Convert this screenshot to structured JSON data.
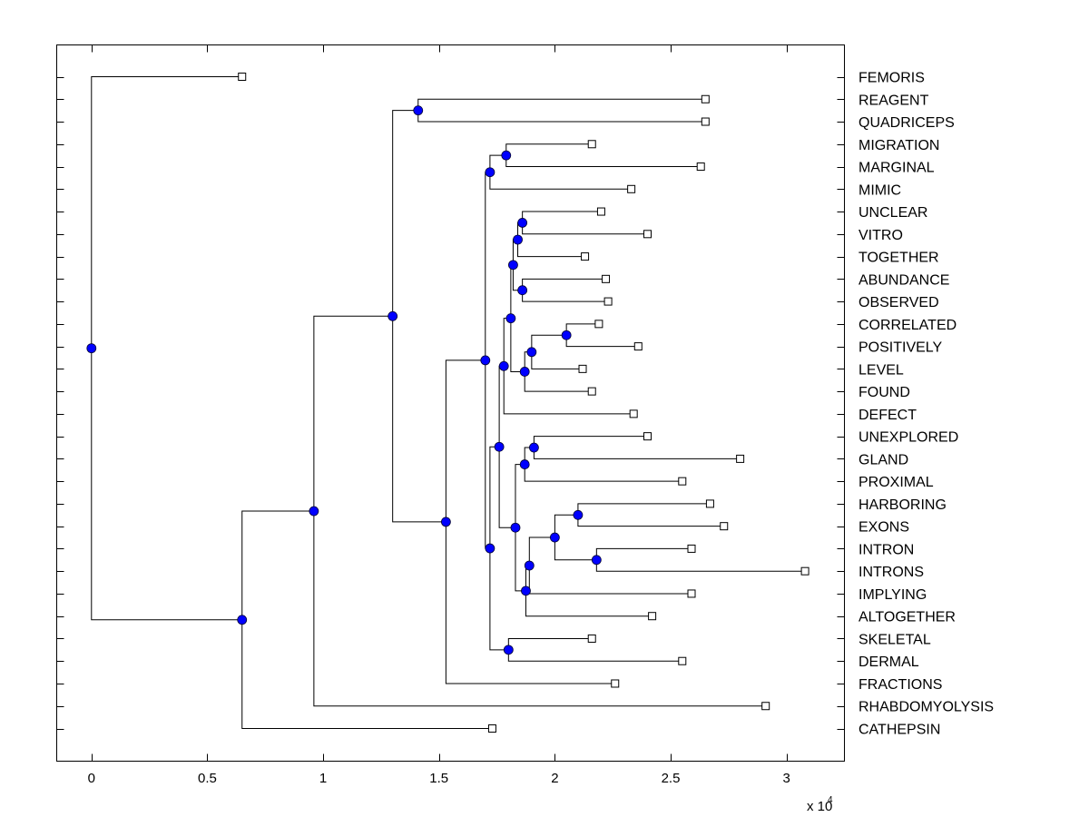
{
  "chart_data": {
    "type": "dendrogram",
    "orientation": "horizontal",
    "title": "",
    "xlabel": "",
    "x_multiplier_label": "x 10",
    "x_multiplier_exponent": "4",
    "xlim": [
      -0.15,
      3.25
    ],
    "xticks": [
      0,
      0.5,
      1,
      1.5,
      2,
      2.5,
      3
    ],
    "xtick_labels": [
      "0",
      "0.5",
      "1",
      "1.5",
      "2",
      "2.5",
      "3"
    ],
    "node_color": "#0000ff",
    "leaves": [
      "FEMORIS",
      "REAGENT",
      "QUADRICEPS",
      "MIGRATION",
      "MARGINAL",
      "MIMIC",
      "UNCLEAR",
      "VITRO",
      "TOGETHER",
      "ABUNDANCE",
      "OBSERVED",
      "CORRELATED",
      "POSITIVELY",
      "LEVEL",
      "FOUND",
      "DEFECT",
      "UNEXPLORED",
      "GLAND",
      "PROXIMAL",
      "HARBORING",
      "EXONS",
      "INTRON",
      "INTRONS",
      "IMPLYING",
      "ALTOGETHER",
      "SKELETAL",
      "DERMAL",
      "FRACTIONS",
      "RHABDOMYOLYSIS",
      "CATHEPSIN"
    ],
    "tree": {
      "h": 0,
      "children": [
        {
          "leaf": "FEMORIS",
          "h": 0.65
        },
        {
          "h": 0.65,
          "children": [
            {
              "h": 0.96,
              "children": [
                {
                  "h": 1.3,
                  "children": [
                    {
                      "h": 1.41,
                      "children": [
                        {
                          "leaf": "REAGENT",
                          "h": 2.65
                        },
                        {
                          "leaf": "QUADRICEPS",
                          "h": 2.65
                        }
                      ]
                    },
                    {
                      "h": 1.53,
                      "children": [
                        {
                          "h": 1.7,
                          "children": [
                            {
                              "h": 1.72,
                              "children": [
                                {
                                  "h": 1.79,
                                  "children": [
                                    {
                                      "leaf": "MIGRATION",
                                      "h": 2.16
                                    },
                                    {
                                      "leaf": "MARGINAL",
                                      "h": 2.63
                                    }
                                  ]
                                },
                                {
                                  "leaf": "MIMIC",
                                  "h": 2.33
                                }
                              ]
                            },
                            {
                              "h": 1.72,
                              "children": [
                                {
                                  "h": 1.76,
                                  "children": [
                                    {
                                      "h": 1.78,
                                      "children": [
                                        {
                                          "h": 1.81,
                                          "children": [
                                            {
                                              "h": 1.82,
                                              "children": [
                                                {
                                                  "h": 1.84,
                                                  "children": [
                                                    {
                                                      "h": 1.86,
                                                      "children": [
                                                        {
                                                          "leaf": "UNCLEAR",
                                                          "h": 2.2
                                                        },
                                                        {
                                                          "leaf": "VITRO",
                                                          "h": 2.4
                                                        }
                                                      ]
                                                    },
                                                    {
                                                      "leaf": "TOGETHER",
                                                      "h": 2.13
                                                    }
                                                  ]
                                                },
                                                {
                                                  "h": 1.86,
                                                  "children": [
                                                    {
                                                      "leaf": "ABUNDANCE",
                                                      "h": 2.22
                                                    },
                                                    {
                                                      "leaf": "OBSERVED",
                                                      "h": 2.23
                                                    }
                                                  ]
                                                }
                                              ]
                                            },
                                            {
                                              "h": 1.87,
                                              "children": [
                                                {
                                                  "h": 1.9,
                                                  "children": [
                                                    {
                                                      "h": 2.05,
                                                      "children": [
                                                        {
                                                          "leaf": "CORRELATED",
                                                          "h": 2.19
                                                        },
                                                        {
                                                          "leaf": "POSITIVELY",
                                                          "h": 2.36
                                                        }
                                                      ]
                                                    },
                                                    {
                                                      "leaf": "LEVEL",
                                                      "h": 2.12
                                                    }
                                                  ]
                                                },
                                                {
                                                  "leaf": "FOUND",
                                                  "h": 2.16
                                                }
                                              ]
                                            }
                                          ]
                                        },
                                        {
                                          "leaf": "DEFECT",
                                          "h": 2.34
                                        }
                                      ]
                                    },
                                    {
                                      "h": 1.83,
                                      "children": [
                                        {
                                          "h": 1.87,
                                          "children": [
                                            {
                                              "h": 1.91,
                                              "children": [
                                                {
                                                  "leaf": "UNEXPLORED",
                                                  "h": 2.4
                                                },
                                                {
                                                  "leaf": "GLAND",
                                                  "h": 2.8
                                                }
                                              ]
                                            },
                                            {
                                              "leaf": "PROXIMAL",
                                              "h": 2.55
                                            }
                                          ]
                                        },
                                        {
                                          "h": 1.875,
                                          "children": [
                                            {
                                              "h": 1.89,
                                              "children": [
                                                {
                                                  "h": 2.0,
                                                  "children": [
                                                    {
                                                      "h": 2.1,
                                                      "children": [
                                                        {
                                                          "leaf": "HARBORING",
                                                          "h": 2.67
                                                        },
                                                        {
                                                          "leaf": "EXONS",
                                                          "h": 2.73
                                                        }
                                                      ]
                                                    },
                                                    {
                                                      "h": 2.18,
                                                      "children": [
                                                        {
                                                          "leaf": "INTRON",
                                                          "h": 2.59
                                                        },
                                                        {
                                                          "leaf": "INTRONS",
                                                          "h": 3.08
                                                        }
                                                      ]
                                                    }
                                                  ]
                                                },
                                                {
                                                  "leaf": "IMPLYING",
                                                  "h": 2.59
                                                }
                                              ]
                                            },
                                            {
                                              "leaf": "ALTOGETHER",
                                              "h": 2.42
                                            }
                                          ]
                                        }
                                      ]
                                    }
                                  ]
                                },
                                {
                                  "h": 1.8,
                                  "children": [
                                    {
                                      "leaf": "SKELETAL",
                                      "h": 2.16
                                    },
                                    {
                                      "leaf": "DERMAL",
                                      "h": 2.55
                                    }
                                  ]
                                }
                              ]
                            }
                          ]
                        },
                        {
                          "leaf": "FRACTIONS",
                          "h": 2.26
                        }
                      ]
                    }
                  ]
                },
                {
                  "leaf": "RHABDOMYOLYSIS",
                  "h": 2.91
                }
              ]
            },
            {
              "leaf": "CATHEPSIN",
              "h": 1.73
            }
          ]
        }
      ]
    }
  }
}
